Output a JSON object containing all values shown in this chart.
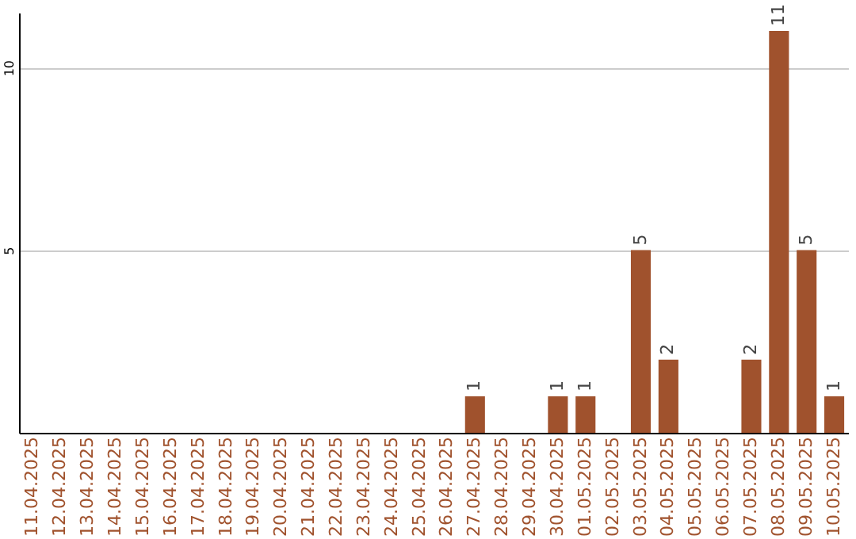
{
  "chart_data": {
    "type": "bar",
    "categories": [
      "11.04.2025",
      "12.04.2025",
      "13.04.2025",
      "14.04.2025",
      "15.04.2025",
      "16.04.2025",
      "17.04.2025",
      "18.04.2025",
      "19.04.2025",
      "20.04.2025",
      "21.04.2025",
      "22.04.2025",
      "23.04.2025",
      "24.04.2025",
      "25.04.2025",
      "26.04.2025",
      "27.04.2025",
      "28.04.2025",
      "29.04.2025",
      "30.04.2025",
      "01.05.2025",
      "02.05.2025",
      "03.05.2025",
      "04.05.2025",
      "05.05.2025",
      "06.05.2025",
      "07.05.2025",
      "08.05.2025",
      "09.05.2025",
      "10.05.2025"
    ],
    "values": [
      0,
      0,
      0,
      0,
      0,
      0,
      0,
      0,
      0,
      0,
      0,
      0,
      0,
      0,
      0,
      0,
      1,
      0,
      0,
      1,
      1,
      0,
      5,
      2,
      0,
      0,
      2,
      11,
      5,
      1
    ],
    "value_labels": [
      null,
      null,
      null,
      null,
      null,
      null,
      null,
      null,
      null,
      null,
      null,
      null,
      null,
      null,
      null,
      null,
      "1",
      null,
      null,
      "1",
      "1",
      null,
      "5",
      "2",
      null,
      null,
      "2",
      "11",
      "5",
      "1"
    ],
    "color": "#a0522d",
    "ylim": [
      0,
      11.5
    ],
    "yticks": [
      5,
      10
    ],
    "grid": "y"
  }
}
